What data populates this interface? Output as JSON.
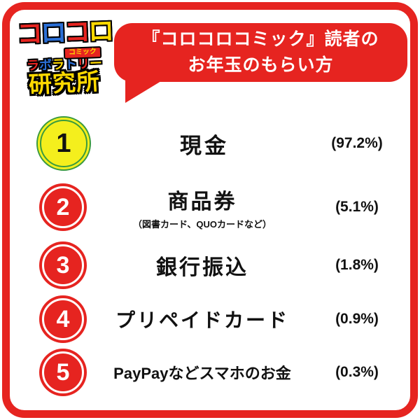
{
  "colors": {
    "red": "#e62420",
    "yellow": "#f4ef1d",
    "green": "#3a9a3f",
    "blue": "#2b6fd6",
    "logo_yellow": "#ffd900",
    "text": "#111111",
    "white": "#ffffff"
  },
  "logo": {
    "line1_chars": [
      {
        "ch": "コ",
        "color": "#e62420"
      },
      {
        "ch": "ロ",
        "color": "#2b6fd6"
      },
      {
        "ch": "コ",
        "color": "#e62420"
      },
      {
        "ch": "ロ",
        "color": "#ffd900"
      }
    ],
    "badge": "コミック",
    "line2_chars": [
      {
        "ch": "ラ",
        "color": "#e62420"
      },
      {
        "ch": "ボ",
        "color": "#2b6fd6"
      },
      {
        "ch": "ラ",
        "color": "#ffd900"
      },
      {
        "ch": "ト",
        "color": "#2b6fd6"
      },
      {
        "ch": "リ",
        "color": "#e62420"
      },
      {
        "ch": "ー",
        "color": "#ffd900"
      }
    ],
    "line3": "研究所"
  },
  "title": {
    "line1": "『コロコロコミック』読者の",
    "line2": "お年玉のもらい方"
  },
  "ranking": [
    {
      "rank": "1",
      "label": "現金",
      "percent": "(97.2%)"
    },
    {
      "rank": "2",
      "label": "商品券",
      "sublabel": "（図書カード、QUOカードなど）",
      "percent": "(5.1%)"
    },
    {
      "rank": "3",
      "label": "銀行振込",
      "percent": "(1.8%)"
    },
    {
      "rank": "4",
      "label": "プリペイドカード",
      "percent": "(0.9%)"
    },
    {
      "rank": "5",
      "label": "PayPayなどスマホのお金",
      "percent": "(0.3%)"
    }
  ],
  "chart_data": {
    "type": "bar",
    "title": "『コロコロコミック』読者のお年玉のもらい方",
    "categories": [
      "現金",
      "商品券（図書カード、QUOカードなど）",
      "銀行振込",
      "プリペイドカード",
      "PayPayなどスマホのお金"
    ],
    "values": [
      97.2,
      5.1,
      1.8,
      0.9,
      0.3
    ],
    "unit": "%",
    "legend_position": "none",
    "grid": false
  }
}
